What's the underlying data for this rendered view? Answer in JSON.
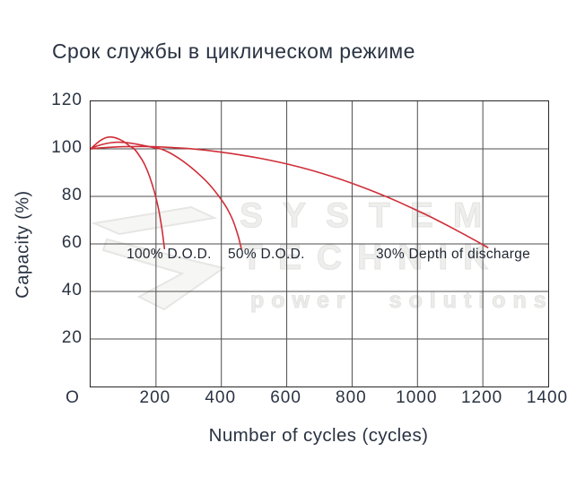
{
  "title": "Срок службы в циклическом режиме",
  "colors": {
    "line_red": "#cf2e38",
    "grid": "#4d4d4d",
    "plot_border": "#262626",
    "text_dark": "#2a3342",
    "annotation_text": "#1f2630",
    "watermark_gray": "#ececea"
  },
  "watermark": {
    "line1": "SYSTEM",
    "line2": "TECHNIK",
    "line3": "power solutions",
    "logo": "arrow-flash-logo"
  },
  "chart_data": {
    "type": "line",
    "title": "Срок службы в циклическом режиме",
    "xlabel": "Number of cycles (cycles)",
    "ylabel": "Capacity (%)",
    "xlim": [
      0,
      1400
    ],
    "ylim": [
      0,
      120
    ],
    "x_ticks": [
      0,
      200,
      400,
      600,
      800,
      1000,
      1200,
      1400
    ],
    "x_tick_labels": [
      "O",
      "200",
      "400",
      "600",
      "800",
      "1000",
      "1200",
      "1400"
    ],
    "y_ticks": [
      20,
      40,
      60,
      80,
      100,
      120
    ],
    "grid": true,
    "legend": "none",
    "series": [
      {
        "name": "100% D.O.D.",
        "points": [
          [
            0,
            100
          ],
          [
            15,
            101.9
          ],
          [
            30,
            103.5
          ],
          [
            45,
            104.6
          ],
          [
            58,
            105
          ],
          [
            72,
            104.8
          ],
          [
            88,
            104
          ],
          [
            105,
            102.7
          ],
          [
            120,
            101.1
          ],
          [
            133,
            100
          ],
          [
            150,
            97
          ],
          [
            165,
            93.5
          ],
          [
            180,
            88.5
          ],
          [
            195,
            82
          ],
          [
            208,
            74.5
          ],
          [
            218,
            66.5
          ],
          [
            226,
            58
          ]
        ]
      },
      {
        "name": "50% D.O.D.",
        "points": [
          [
            0,
            100
          ],
          [
            20,
            101.2
          ],
          [
            50,
            102.3
          ],
          [
            80,
            102.8
          ],
          [
            110,
            102.6
          ],
          [
            140,
            102
          ],
          [
            170,
            101.2
          ],
          [
            200,
            100.3
          ],
          [
            214,
            100
          ],
          [
            240,
            98.5
          ],
          [
            270,
            96
          ],
          [
            300,
            93
          ],
          [
            330,
            89.5
          ],
          [
            360,
            85.5
          ],
          [
            390,
            80.5
          ],
          [
            415,
            75.5
          ],
          [
            435,
            70
          ],
          [
            452,
            63
          ],
          [
            461,
            58
          ]
        ]
      },
      {
        "name": "30% Depth of discharge",
        "points": [
          [
            0,
            100
          ],
          [
            40,
            100.5
          ],
          [
            100,
            100.9
          ],
          [
            160,
            101
          ],
          [
            220,
            100.8
          ],
          [
            280,
            100.3
          ],
          [
            340,
            99.6
          ],
          [
            400,
            98.6
          ],
          [
            460,
            97.4
          ],
          [
            520,
            96
          ],
          [
            580,
            94.3
          ],
          [
            640,
            92.3
          ],
          [
            700,
            90
          ],
          [
            760,
            87.4
          ],
          [
            820,
            84.5
          ],
          [
            880,
            81.3
          ],
          [
            940,
            77.8
          ],
          [
            1000,
            74
          ],
          [
            1060,
            70
          ],
          [
            1120,
            65.7
          ],
          [
            1180,
            61.2
          ],
          [
            1215,
            58.5
          ]
        ]
      }
    ],
    "annotations": [
      {
        "text": "100% D.O.D.",
        "x": 110,
        "y": 59
      },
      {
        "text": "50% D.O.D.",
        "x": 420,
        "y": 59
      },
      {
        "text": "30% Depth of discharge",
        "x": 873,
        "y": 59
      }
    ]
  }
}
